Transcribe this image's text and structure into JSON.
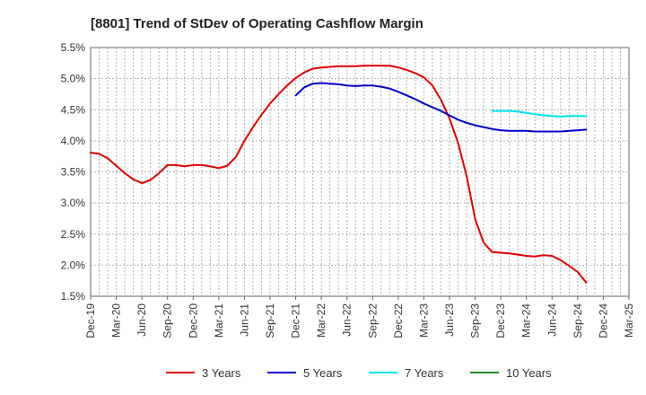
{
  "chart_data": {
    "type": "line",
    "title": "[8801]  Trend of StDev of Operating Cashflow Margin",
    "xlabel": "",
    "ylabel": "",
    "y_unit": "%",
    "ylim": [
      1.5,
      5.5
    ],
    "y_ticks": [
      "1.5%",
      "2.0%",
      "2.5%",
      "3.0%",
      "3.5%",
      "4.0%",
      "4.5%",
      "5.0%",
      "5.5%"
    ],
    "x_ticks": [
      "Dec-19",
      "Mar-20",
      "Jun-20",
      "Sep-20",
      "Dec-20",
      "Mar-21",
      "Jun-21",
      "Sep-21",
      "Dec-21",
      "Mar-22",
      "Jun-22",
      "Sep-22",
      "Dec-22",
      "Mar-23",
      "Jun-23",
      "Sep-23",
      "Dec-23",
      "Mar-24",
      "Jun-24",
      "Sep-24",
      "Dec-24",
      "Mar-25"
    ],
    "grid": true,
    "legend_position": "bottom",
    "series": [
      {
        "name": "3 Years",
        "color": "#e00000",
        "points": [
          [
            "Dec-19",
            3.81
          ],
          [
            "Jan-20",
            3.79
          ],
          [
            "Feb-20",
            3.72
          ],
          [
            "Mar-20",
            3.6
          ],
          [
            "Apr-20",
            3.48
          ],
          [
            "May-20",
            3.38
          ],
          [
            "Jun-20",
            3.32
          ],
          [
            "Jul-20",
            3.37
          ],
          [
            "Aug-20",
            3.48
          ],
          [
            "Sep-20",
            3.61
          ],
          [
            "Oct-20",
            3.61
          ],
          [
            "Nov-20",
            3.59
          ],
          [
            "Dec-20",
            3.61
          ],
          [
            "Jan-21",
            3.61
          ],
          [
            "Feb-21",
            3.59
          ],
          [
            "Mar-21",
            3.56
          ],
          [
            "Apr-21",
            3.6
          ],
          [
            "May-21",
            3.74
          ],
          [
            "Jun-21",
            4.0
          ],
          [
            "Jul-21",
            4.22
          ],
          [
            "Aug-21",
            4.42
          ],
          [
            "Sep-21",
            4.6
          ],
          [
            "Oct-21",
            4.75
          ],
          [
            "Nov-21",
            4.89
          ],
          [
            "Dec-21",
            5.01
          ],
          [
            "Jan-22",
            5.1
          ],
          [
            "Feb-22",
            5.16
          ],
          [
            "Mar-22",
            5.18
          ],
          [
            "Apr-22",
            5.19
          ],
          [
            "May-22",
            5.2
          ],
          [
            "Jun-22",
            5.2
          ],
          [
            "Jul-22",
            5.2
          ],
          [
            "Aug-22",
            5.21
          ],
          [
            "Sep-22",
            5.21
          ],
          [
            "Oct-22",
            5.21
          ],
          [
            "Nov-22",
            5.21
          ],
          [
            "Dec-22",
            5.18
          ],
          [
            "Jan-23",
            5.14
          ],
          [
            "Feb-23",
            5.09
          ],
          [
            "Mar-23",
            5.02
          ],
          [
            "Apr-23",
            4.89
          ],
          [
            "May-23",
            4.66
          ],
          [
            "Jun-23",
            4.36
          ],
          [
            "Jul-23",
            3.97
          ],
          [
            "Aug-23",
            3.44
          ],
          [
            "Sep-23",
            2.74
          ],
          [
            "Oct-23",
            2.36
          ],
          [
            "Nov-23",
            2.21
          ],
          [
            "Dec-23",
            2.2
          ],
          [
            "Jan-24",
            2.19
          ],
          [
            "Feb-24",
            2.17
          ],
          [
            "Mar-24",
            2.15
          ],
          [
            "Apr-24",
            2.14
          ],
          [
            "May-24",
            2.16
          ],
          [
            "Jun-24",
            2.15
          ],
          [
            "Jul-24",
            2.08
          ],
          [
            "Aug-24",
            1.99
          ],
          [
            "Sep-24",
            1.89
          ],
          [
            "Oct-24",
            1.72
          ]
        ]
      },
      {
        "name": "5 Years",
        "color": "#0000cc",
        "points": [
          [
            "Dec-21",
            4.73
          ],
          [
            "Jan-22",
            4.86
          ],
          [
            "Feb-22",
            4.92
          ],
          [
            "Mar-22",
            4.93
          ],
          [
            "Apr-22",
            4.92
          ],
          [
            "May-22",
            4.91
          ],
          [
            "Jun-22",
            4.89
          ],
          [
            "Jul-22",
            4.88
          ],
          [
            "Aug-22",
            4.89
          ],
          [
            "Sep-22",
            4.89
          ],
          [
            "Oct-22",
            4.87
          ],
          [
            "Nov-22",
            4.84
          ],
          [
            "Dec-22",
            4.79
          ],
          [
            "Jan-23",
            4.73
          ],
          [
            "Feb-23",
            4.67
          ],
          [
            "Mar-23",
            4.6
          ],
          [
            "Apr-23",
            4.54
          ],
          [
            "May-23",
            4.48
          ],
          [
            "Jun-23",
            4.41
          ],
          [
            "Jul-23",
            4.34
          ],
          [
            "Aug-23",
            4.29
          ],
          [
            "Sep-23",
            4.25
          ],
          [
            "Oct-23",
            4.22
          ],
          [
            "Nov-23",
            4.19
          ],
          [
            "Dec-23",
            4.17
          ],
          [
            "Jan-24",
            4.16
          ],
          [
            "Feb-24",
            4.16
          ],
          [
            "Mar-24",
            4.16
          ],
          [
            "Apr-24",
            4.15
          ],
          [
            "May-24",
            4.15
          ],
          [
            "Jun-24",
            4.15
          ],
          [
            "Jul-24",
            4.15
          ],
          [
            "Aug-24",
            4.16
          ],
          [
            "Sep-24",
            4.17
          ],
          [
            "Oct-24",
            4.18
          ]
        ]
      },
      {
        "name": "7 Years",
        "color": "#00e5ee",
        "points": [
          [
            "Nov-23",
            4.48
          ],
          [
            "Dec-23",
            4.48
          ],
          [
            "Jan-24",
            4.48
          ],
          [
            "Feb-24",
            4.47
          ],
          [
            "Mar-24",
            4.45
          ],
          [
            "Apr-24",
            4.43
          ],
          [
            "May-24",
            4.41
          ],
          [
            "Jun-24",
            4.4
          ],
          [
            "Jul-24",
            4.39
          ],
          [
            "Aug-24",
            4.4
          ],
          [
            "Sep-24",
            4.4
          ],
          [
            "Oct-24",
            4.4
          ]
        ]
      },
      {
        "name": "10 Years",
        "color": "#228b22",
        "points": []
      }
    ]
  }
}
